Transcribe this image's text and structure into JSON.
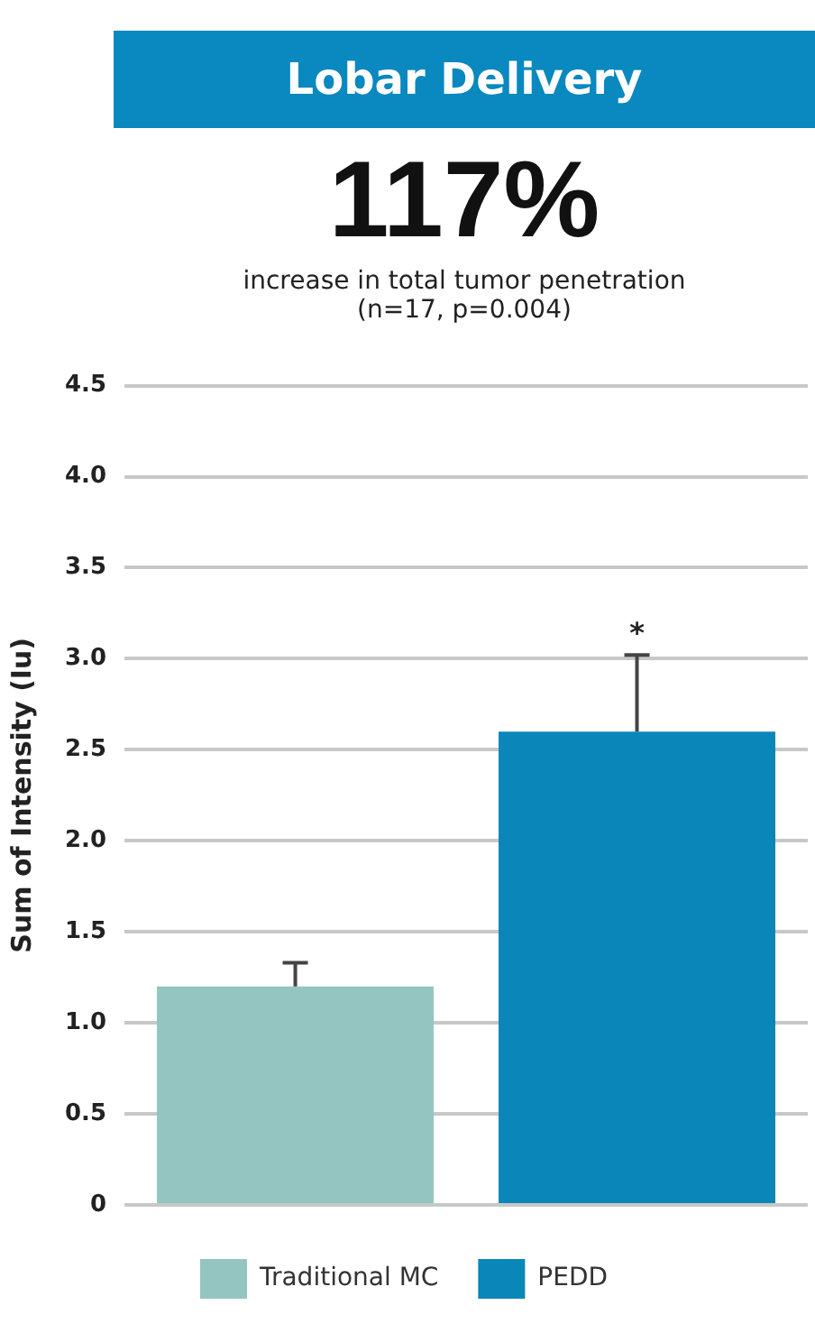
{
  "chart_data": {
    "type": "bar",
    "title": "Lobar Delivery",
    "subtitle": "117%",
    "annotations": [
      "increase in total tumor penetration",
      "(n=17, p=0.004)",
      "*"
    ],
    "categories": [
      null,
      null
    ],
    "series": [
      {
        "name": "Traditional MC",
        "color": "#94c5c0",
        "values": [
          1.2,
          null
        ],
        "errors": [
          [
            1.2,
            1.33
          ],
          null
        ]
      },
      {
        "name": "PEDD",
        "color": "#0a86b8",
        "values": [
          null,
          2.6
        ],
        "errors": [
          null,
          [
            2.6,
            3.02
          ]
        ]
      }
    ],
    "ylabel": "Sum of Intensity (Iu)",
    "ylim": [
      0,
      4.5
    ],
    "yticks": [
      0,
      {
        "value": 0.5,
        "label": "0.5"
      },
      {
        "value": 1,
        "label": "1.0"
      },
      {
        "value": 1.5,
        "label": "1.5"
      },
      {
        "value": 2,
        "label": "2.0"
      },
      {
        "value": 2.5,
        "label": "2.5"
      },
      {
        "value": 3,
        "label": "3.0"
      },
      {
        "value": 3.5,
        "label": "3.5"
      },
      {
        "value": 4,
        "label": "4.0"
      },
      {
        "value": 4.5,
        "label": "4.5"
      }
    ],
    "grid": "y",
    "legend": "bottom",
    "tick_labels": "y"
  }
}
